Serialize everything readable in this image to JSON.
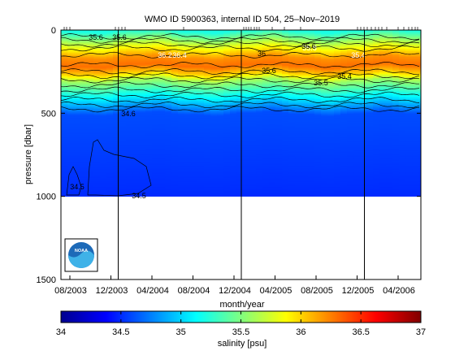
{
  "chart_data": {
    "type": "heatmap",
    "title": "WMO ID 5900363, internal ID 504, 25–Nov–2019",
    "xlabel": "month/year",
    "ylabel": "pressure [dbar]",
    "colorbar_label": "salinity [psu]",
    "x_ticks": [
      "08/2003",
      "12/2003",
      "04/2004",
      "08/2004",
      "12/2004",
      "04/2005",
      "08/2005",
      "12/2005",
      "04/2006"
    ],
    "y_ticks": [
      "0",
      "500",
      "1000",
      "1500"
    ],
    "ylim": [
      0,
      1500
    ],
    "y_reversed": true,
    "colorbar_ticks": [
      "34",
      "34.5",
      "35",
      "35.5",
      "36",
      "36.5",
      "37"
    ],
    "clim": [
      34,
      37
    ],
    "colormap": "jet",
    "vertical_markers": [
      "12/2003",
      "12/2004",
      "12/2005"
    ],
    "salinity_profile": [
      {
        "pressure": 0,
        "salinity": 35.2
      },
      {
        "pressure": 60,
        "salinity": 35.6
      },
      {
        "pressure": 110,
        "salinity": 35.9
      },
      {
        "pressure": 160,
        "salinity": 36.2
      },
      {
        "pressure": 210,
        "salinity": 36.3
      },
      {
        "pressure": 260,
        "salinity": 36.0
      },
      {
        "pressure": 300,
        "salinity": 35.6
      },
      {
        "pressure": 360,
        "salinity": 35.3
      },
      {
        "pressure": 420,
        "salinity": 35.0
      },
      {
        "pressure": 460,
        "salinity": 34.8
      },
      {
        "pressure": 500,
        "salinity": 34.6
      },
      {
        "pressure": 1000,
        "salinity": 34.5
      }
    ],
    "contour_labels": [
      "35.6",
      "36.4",
      "36.2",
      "35.8",
      "35.4",
      "35.6",
      "35.6",
      "36",
      "35.5",
      "35.6",
      "35.4",
      "34.6",
      "34.5",
      "34.5"
    ],
    "logo_text": "NOAA"
  }
}
